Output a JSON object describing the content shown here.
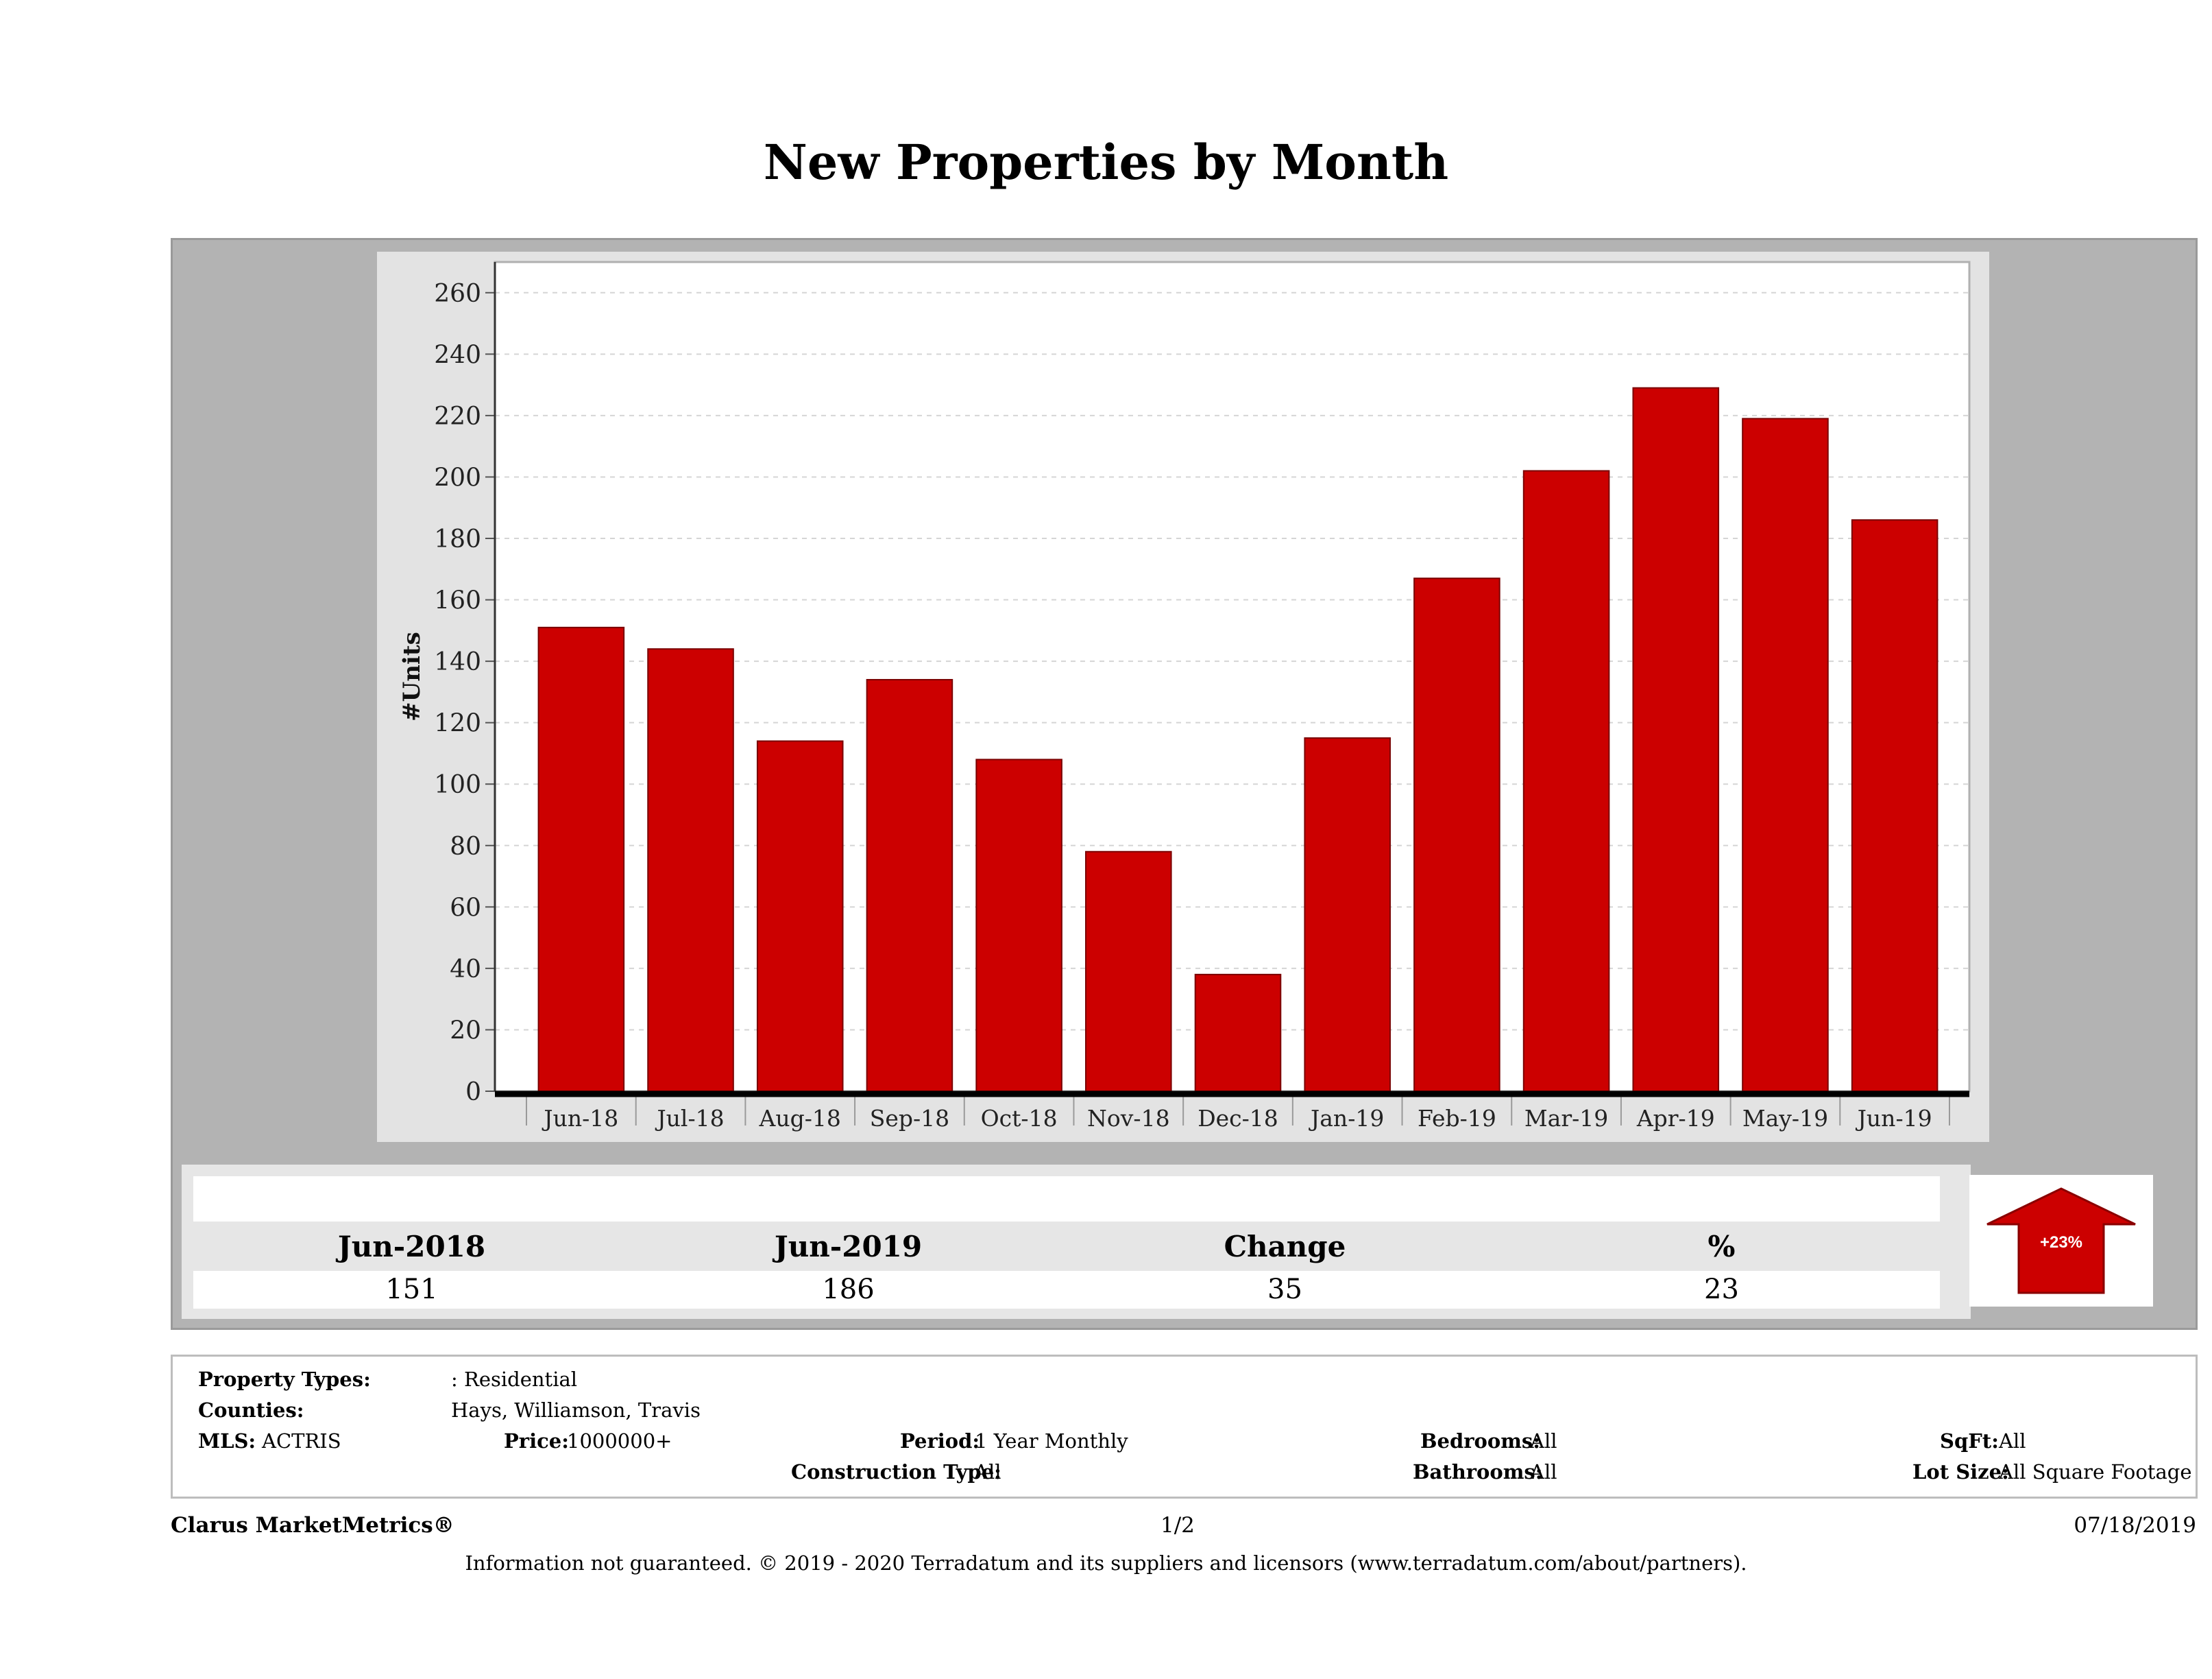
{
  "title": "New Properties by Month",
  "chart_data": {
    "type": "bar",
    "categories": [
      "Jun-18",
      "Jul-18",
      "Aug-18",
      "Sep-18",
      "Oct-18",
      "Nov-18",
      "Dec-18",
      "Jan-19",
      "Feb-19",
      "Mar-19",
      "Apr-19",
      "May-19",
      "Jun-19"
    ],
    "values": [
      151,
      144,
      114,
      134,
      108,
      78,
      38,
      115,
      167,
      202,
      229,
      219,
      186
    ],
    "ylabel": "#Units",
    "ylim": [
      0,
      270
    ],
    "yticks": [
      0,
      20,
      40,
      60,
      80,
      100,
      120,
      140,
      160,
      180,
      200,
      220,
      240,
      260
    ],
    "bar_color": "#cc0000",
    "grid": true
  },
  "stats": {
    "headers": [
      "Jun-2018",
      "Jun-2019",
      "Change",
      "%"
    ],
    "values": [
      "151",
      "186",
      "35",
      "23"
    ],
    "badge": "+23%",
    "badge_color": "#cc0000"
  },
  "info": {
    "property_types_label": "Property Types:",
    "property_types_value": ": Residential",
    "counties_label": "Counties:",
    "counties_value": "Hays, Williamson, Travis",
    "mls_label": "MLS:",
    "mls_value": "ACTRIS",
    "price_label": "Price:",
    "price_value": "1000000+",
    "period_label": "Period:",
    "period_value": "1 Year Monthly",
    "construction_label": "Construction Type:",
    "construction_value": "All",
    "bedrooms_label": "Bedrooms:",
    "bedrooms_value": "All",
    "bathrooms_label": "Bathrooms:",
    "bathrooms_value": "All",
    "sqft_label": "SqFt:",
    "sqft_value": "All",
    "lotsize_label": "Lot Size:",
    "lotsize_value": "All Square Footage"
  },
  "footer": {
    "brand": "Clarus MarketMetrics®",
    "page": "1/2",
    "date": "07/18/2019",
    "disclaimer": "Information not guaranteed. © 2019 - 2020 Terradatum and its suppliers and licensors (www.terradatum.com/about/partners)."
  }
}
